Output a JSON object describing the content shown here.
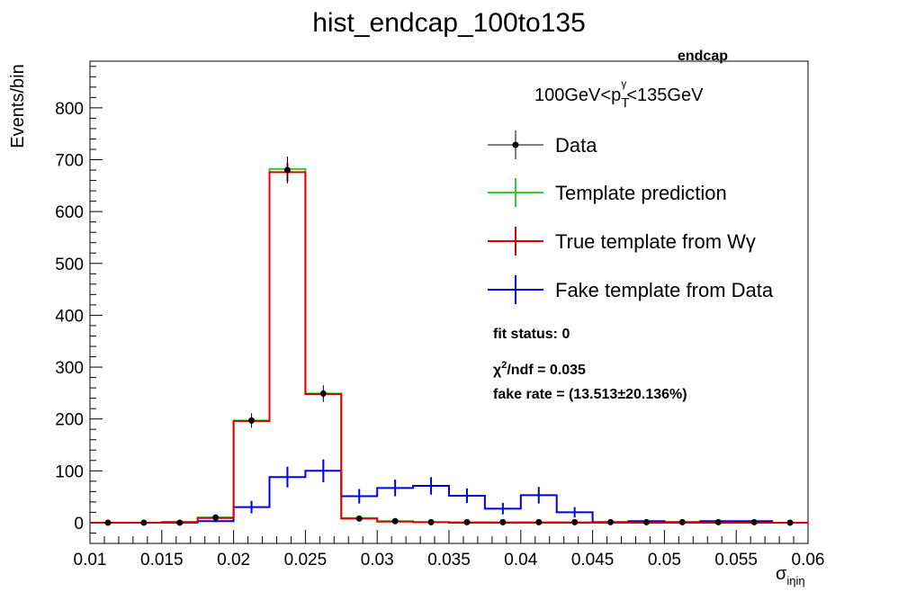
{
  "chart_data": {
    "type": "histogram",
    "title": "hist_endcap_100to135",
    "xlabel": "σ",
    "xlabel_sub": "iηiη",
    "ylabel": "Events/bin",
    "xlim": [
      0.01,
      0.06
    ],
    "ylim": [
      -40,
      890
    ],
    "x_ticks": [
      0.01,
      0.015,
      0.02,
      0.025,
      0.03,
      0.035,
      0.04,
      0.045,
      0.05,
      0.055,
      0.06
    ],
    "x_tick_labels": [
      "0.01",
      "0.015",
      "0.02",
      "0.025",
      "0.03",
      "0.035",
      "0.04",
      "0.045",
      "0.05",
      "0.055",
      "0.06"
    ],
    "y_ticks": [
      0,
      100,
      200,
      300,
      400,
      500,
      600,
      700,
      800
    ],
    "y_tick_labels": [
      "0",
      "100",
      "200",
      "300",
      "400",
      "500",
      "600",
      "700",
      "800"
    ],
    "bin_edges": [
      0.01,
      0.0125,
      0.015,
      0.0175,
      0.02,
      0.0225,
      0.025,
      0.0275,
      0.03,
      0.0325,
      0.035,
      0.0375,
      0.04,
      0.0425,
      0.045,
      0.0475,
      0.05,
      0.0525,
      0.055,
      0.0575,
      0.06
    ],
    "series": [
      {
        "name": "Data",
        "color": "#000000",
        "style": "points",
        "values": [
          0,
          0,
          0,
          10,
          197,
          680,
          249,
          8,
          3,
          1,
          1,
          1,
          1,
          1,
          1,
          1,
          1,
          1,
          1,
          0
        ],
        "errors": [
          0,
          0,
          0,
          3,
          14,
          26,
          16,
          3,
          2,
          1,
          1,
          1,
          1,
          1,
          1,
          1,
          1,
          1,
          1,
          0
        ]
      },
      {
        "name": "Template prediction",
        "color": "#33cc33",
        "style": "step",
        "values": [
          0,
          0,
          1,
          10,
          197,
          682,
          249,
          9,
          3,
          1,
          1,
          1,
          1,
          1,
          1,
          2,
          1,
          2,
          2,
          0
        ],
        "errors": []
      },
      {
        "name": "True template from Wγ",
        "color": "#dd0000",
        "style": "step",
        "values": [
          0,
          0,
          0,
          9,
          196,
          676,
          248,
          8,
          2,
          1,
          0,
          0,
          0,
          0,
          0,
          0,
          0,
          0,
          0,
          0
        ],
        "errors": [
          0,
          0,
          0,
          2,
          5,
          18,
          6,
          1,
          1,
          0,
          0,
          0,
          0,
          0,
          0,
          0,
          0,
          0,
          0,
          0
        ]
      },
      {
        "name": "Fake template from Data",
        "color": "#0000dd",
        "style": "step",
        "values": [
          0,
          0,
          1,
          3,
          30,
          88,
          100,
          51,
          67,
          71,
          52,
          27,
          53,
          20,
          1,
          3,
          1,
          3,
          3,
          0
        ],
        "errors": [
          0,
          0,
          1,
          2,
          12,
          20,
          22,
          14,
          16,
          17,
          14,
          11,
          16,
          10,
          1,
          2,
          1,
          2,
          2,
          0
        ]
      }
    ],
    "annotations": {
      "corner_label": "endcap",
      "range_prefix": "100GeV<p",
      "range_sub": "T",
      "range_sup": "γ",
      "range_suffix": "<135GeV",
      "fit_status": "fit status: 0",
      "chi2_prefix": "χ",
      "chi2_sup": "2",
      "chi2_suffix": "/ndf = 0.035",
      "fake_rate": "fake rate = (13.513±20.136%)"
    },
    "legend_position": "top-right"
  }
}
